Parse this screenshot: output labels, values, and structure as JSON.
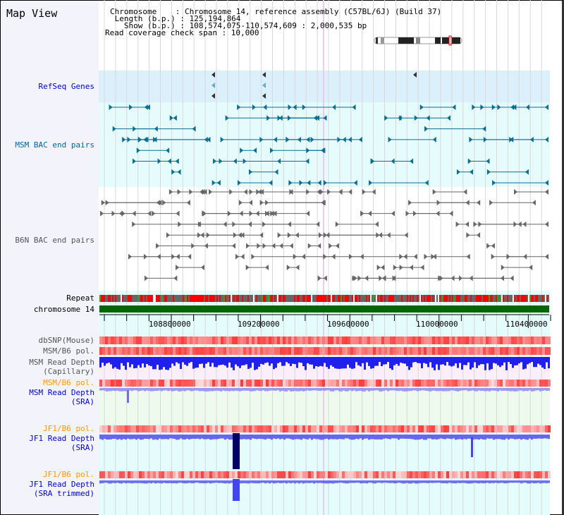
{
  "title": "Map View",
  "info": {
    "chromosome": "Chromosome    : Chromosome 14, reference assembly (C57BL/6J) (Build 37)",
    "length": " Length (b.p.) : 125,194,864",
    "show": "   Show (b.p.) : 108,574,075-110,574,609 : 2,000,535 bp",
    "span": "Read coverage check span : 10,000"
  },
  "tracks": {
    "refseq": "RefSeq Genes",
    "msm_bac": "MSM BAC end pairs",
    "b6n_bac": "B6N BAC end pairs",
    "repeat": "Repeat",
    "chromosome": "chromosome 14",
    "dbsnp": "dbSNP(Mouse)",
    "msm_pol": "MSM/B6 pol.",
    "msm_cap_1": "MSM Read Depth",
    "msm_cap_2": "(Capillary)",
    "msm_pol2": "MSM/B6 pol.",
    "msm_sra_1": "MSM Read Depth",
    "msm_sra_2": "(SRA)",
    "jf1_pol": "JF1/B6 pol.",
    "jf1_sra_1": "JF1 Read Depth",
    "jf1_sra_2": "(SRA)",
    "jf1_pol2": "JF1/B6 pol.",
    "jf1_trim_1": "JF1 Read Depth",
    "jf1_trim_2": "(SRA trimmed)"
  },
  "axis": {
    "ticks": [
      "108800000",
      "109200000",
      "109600000",
      "110000000",
      "110400000"
    ]
  },
  "colors": {
    "refseq": "#0000cc",
    "msm": "#006699",
    "gray": "#555555",
    "orange": "#ff9900",
    "blue": "#0000cc",
    "chrom": "#006600"
  }
}
